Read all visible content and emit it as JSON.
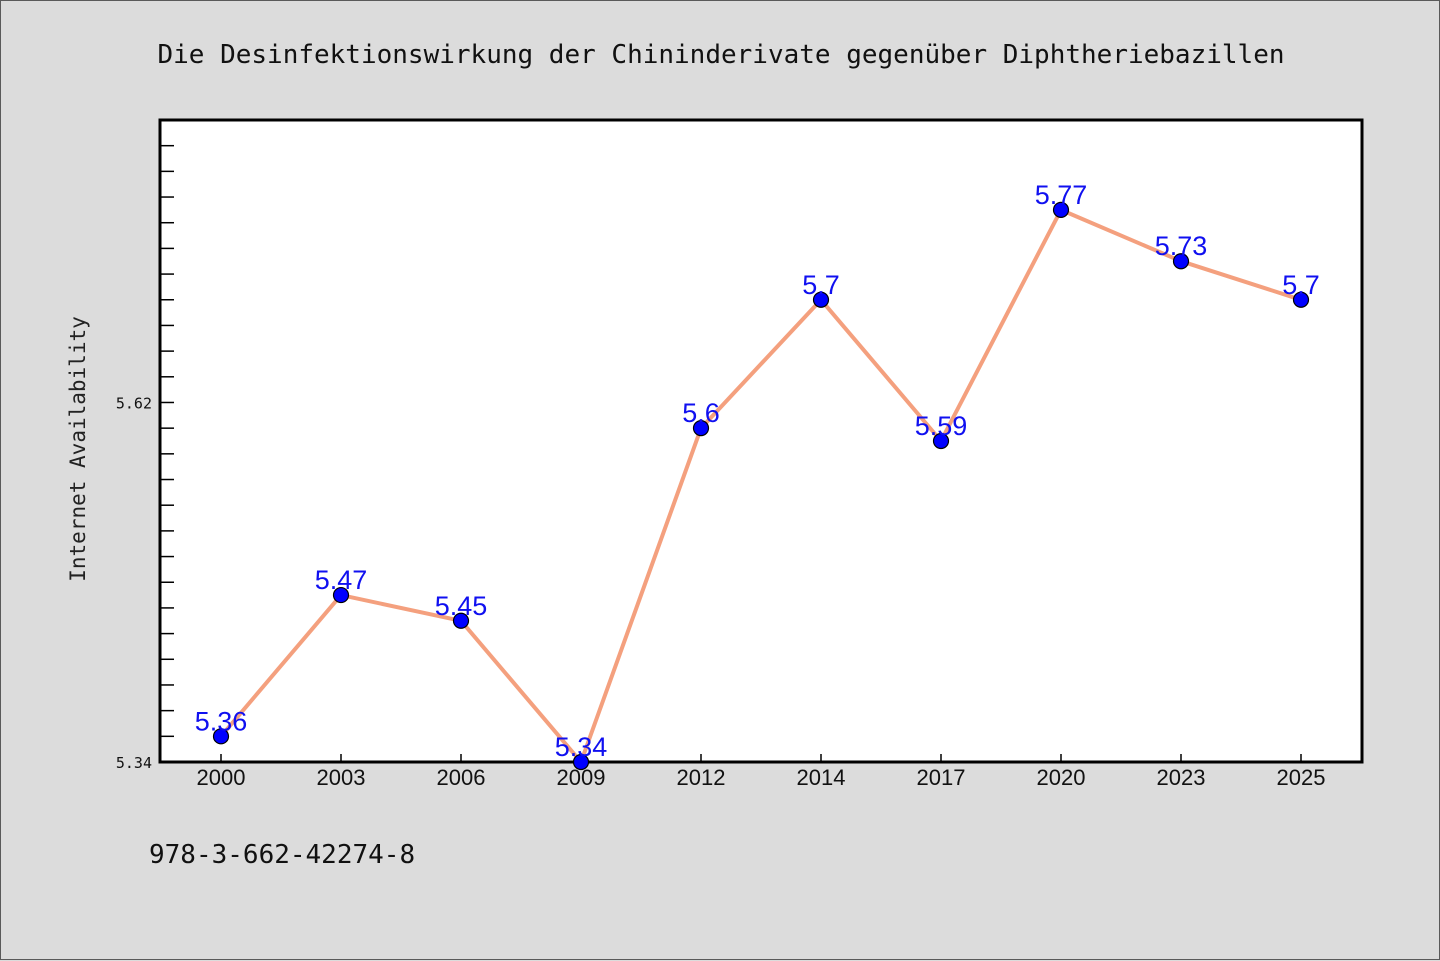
{
  "chart_data": {
    "type": "line",
    "title": "Die Desinfektionswirkung der Chininderivate gegenüber Diphtheriebazillen",
    "xlabel": "",
    "ylabel": "Internet Availability",
    "categories": [
      "2000",
      "2003",
      "2006",
      "2009",
      "2012",
      "2014",
      "2017",
      "2020",
      "2023",
      "2025"
    ],
    "series": [
      {
        "values": [
          5.36,
          5.47,
          5.45,
          5.34,
          5.6,
          5.7,
          5.59,
          5.77,
          5.73,
          5.7
        ],
        "data_labels": [
          "5.36",
          "5.47",
          "5.45",
          "5.34",
          "5.6",
          "5.7",
          "5.59",
          "5.77",
          "5.73",
          "5.7"
        ],
        "line_color": "#f4a07e",
        "marker_color": "#0000ff"
      }
    ],
    "ylim": [
      5.34,
      5.84
    ],
    "y_ticks": [
      "5.34",
      "5.62"
    ],
    "grid": false,
    "legend": "none"
  },
  "footnote": "978-3-662-42274-8",
  "colors": {
    "background": "#dcdcdc",
    "plot_area": "#ffffff",
    "line": "#f4a07e",
    "marker": "#0000ff",
    "data_label": "#1010f0"
  }
}
